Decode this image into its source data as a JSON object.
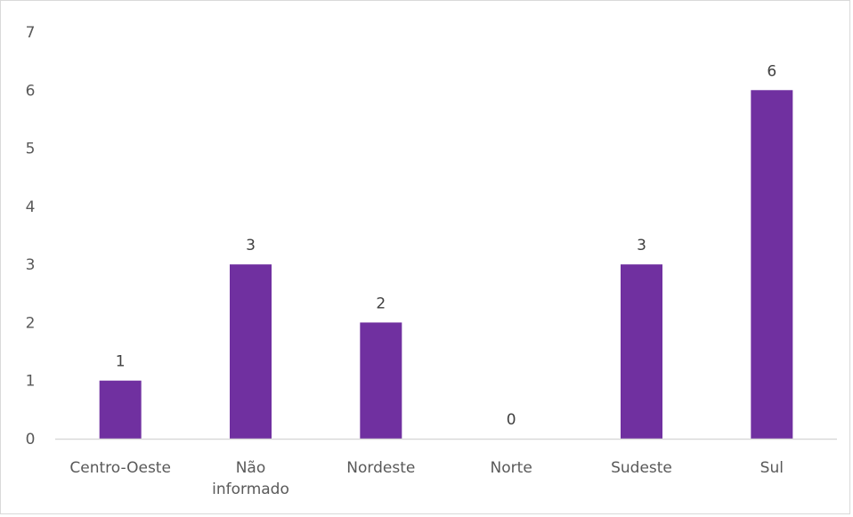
{
  "chart_data": {
    "type": "bar",
    "categories": [
      [
        "Centro-Oeste"
      ],
      [
        "Não",
        "informado"
      ],
      [
        "Nordeste"
      ],
      [
        "Norte"
      ],
      [
        "Sudeste"
      ],
      [
        "Sul"
      ]
    ],
    "values": [
      1,
      3,
      2,
      0,
      3,
      6
    ],
    "data_labels": [
      "1",
      "3",
      "2",
      "0",
      "3",
      "6"
    ],
    "y_ticks": [
      "0",
      "1",
      "2",
      "3",
      "4",
      "5",
      "6",
      "7"
    ],
    "ylim": [
      0,
      7
    ],
    "bar_color": "#7030a0",
    "axis_color": "#d9d9d9",
    "grid": false,
    "legend": "none",
    "title": "",
    "xlabel": "",
    "ylabel": ""
  }
}
